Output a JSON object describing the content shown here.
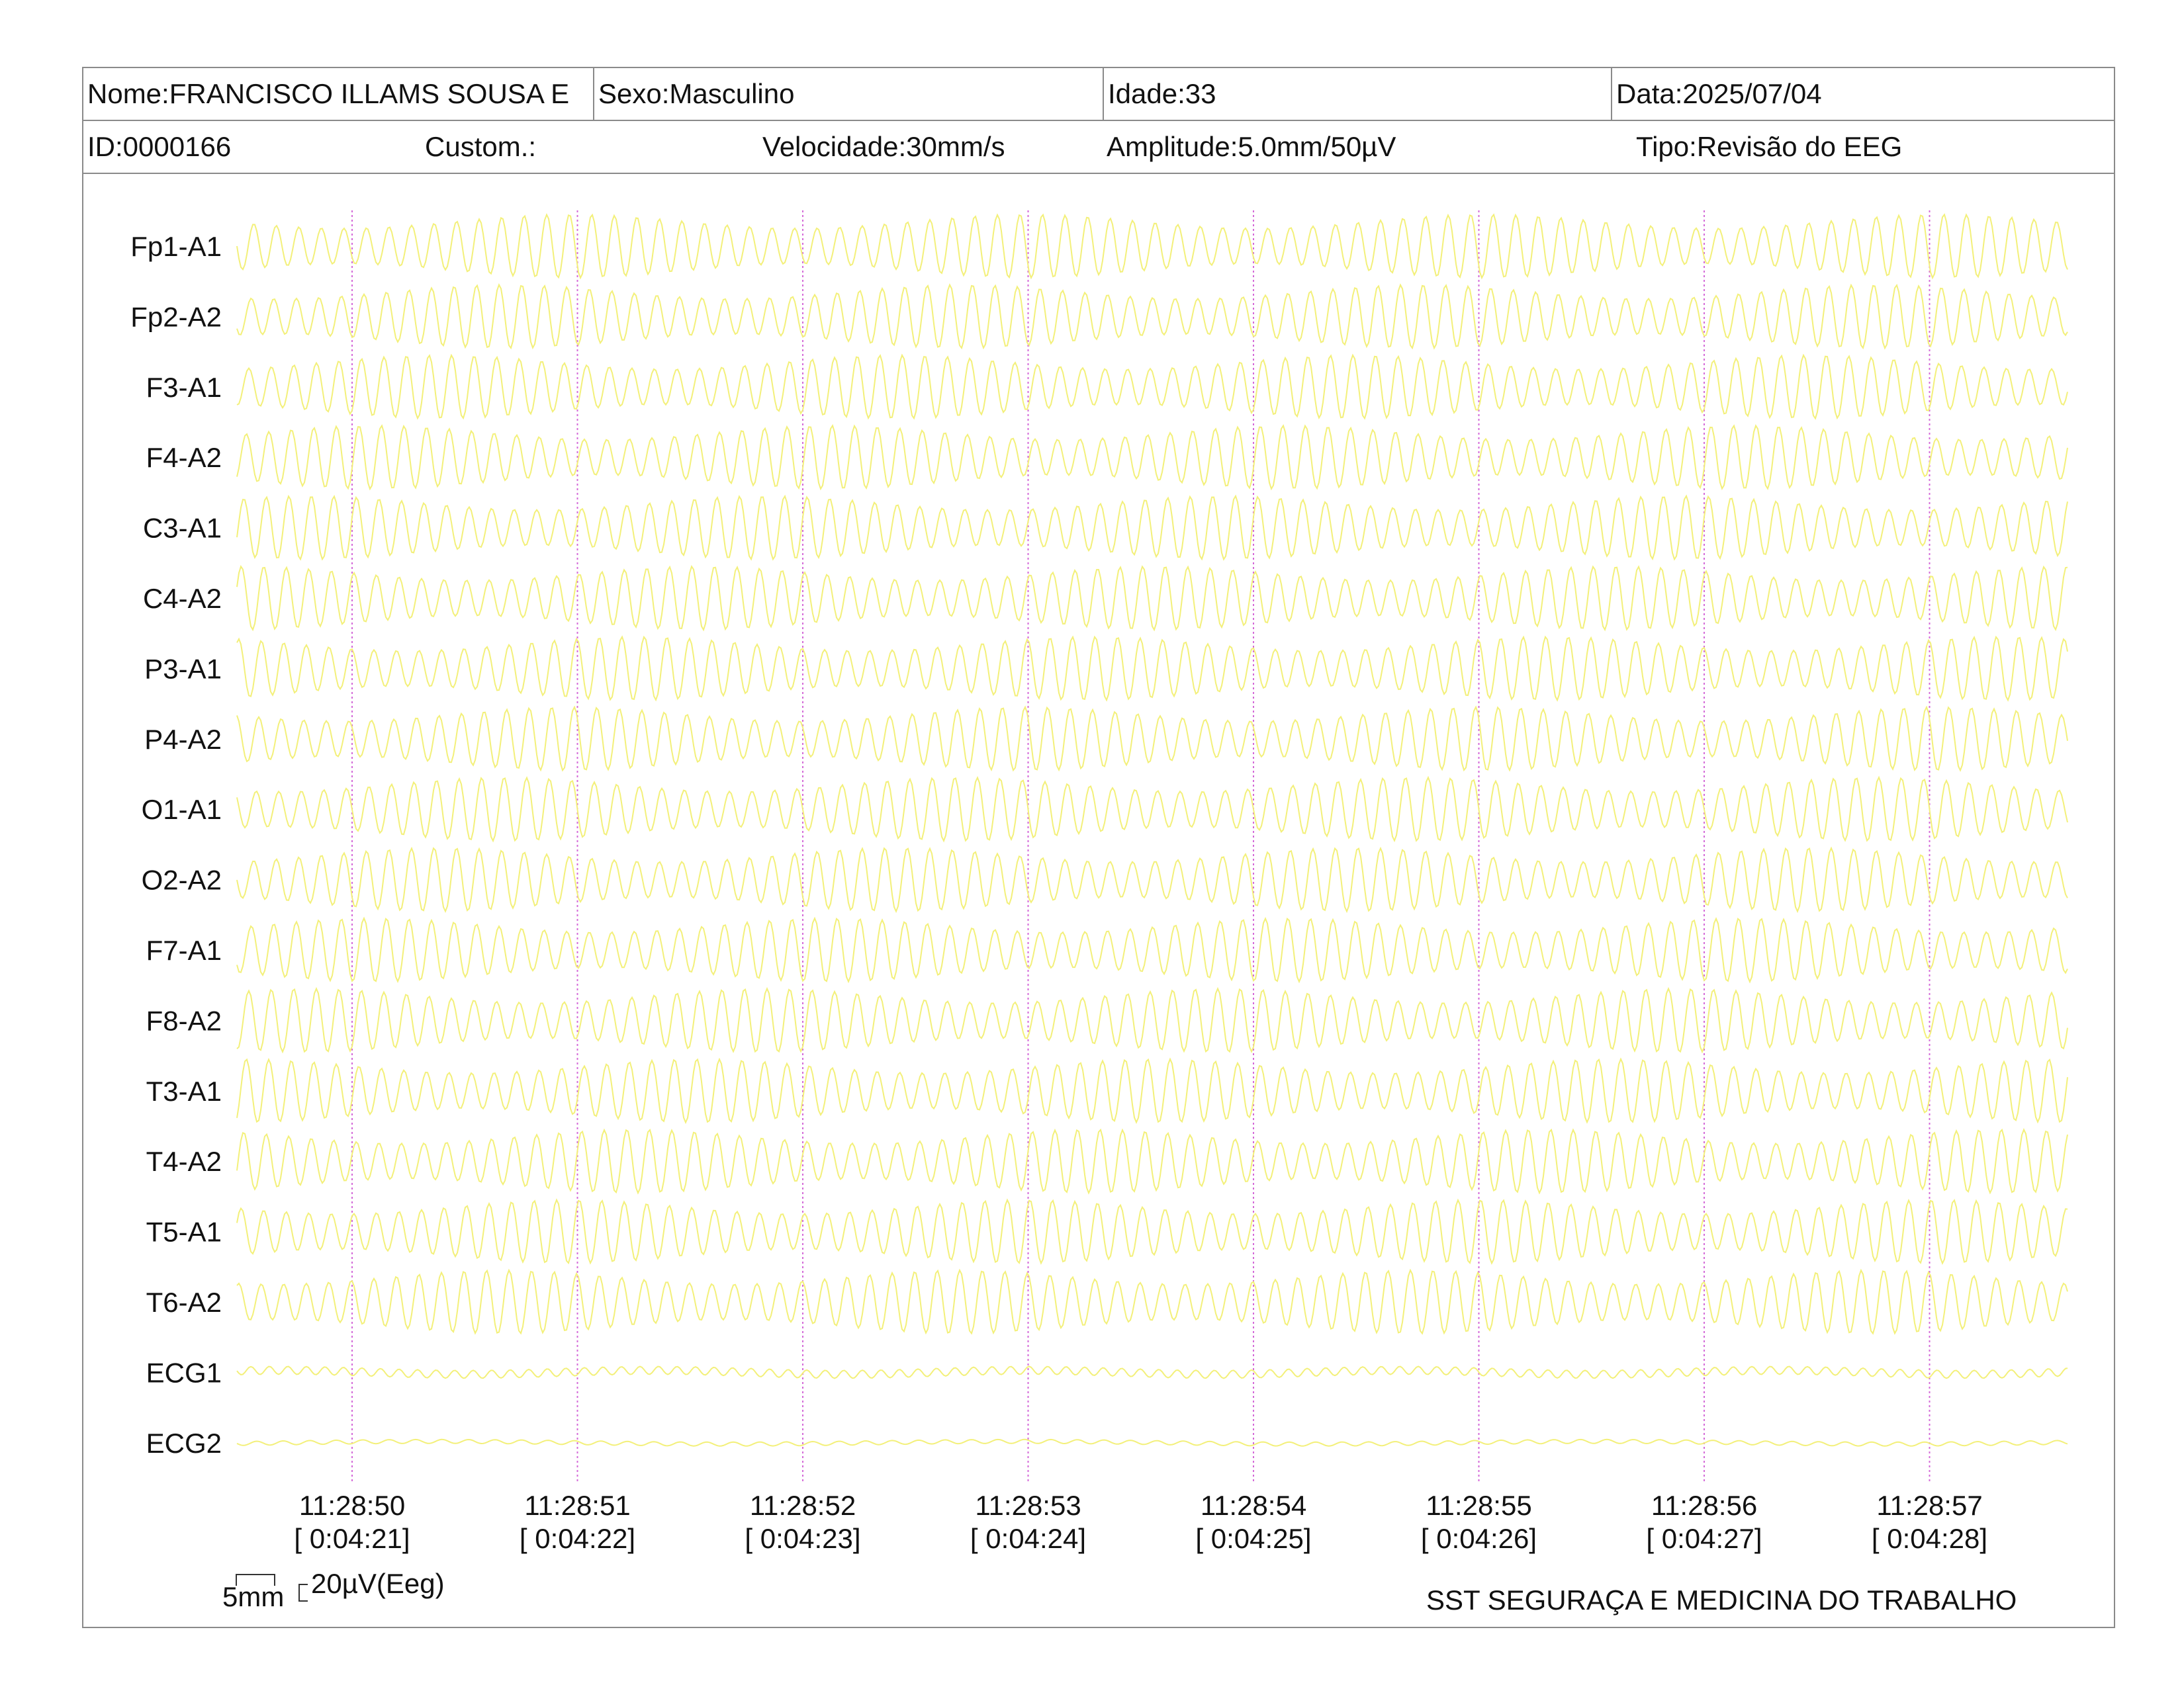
{
  "header": {
    "nome": "Nome:FRANCISCO ILLAMS SOUSA E",
    "sexo": "Sexo:Masculino",
    "idade": "Idade:33",
    "data": "Data:2025/07/04",
    "id": "ID:0000166",
    "custom": "Custom.:",
    "velocidade": "Velocidade:30mm/s",
    "amplitude": "Amplitude:5.0mm/50µV",
    "tipo": "Tipo:Revisão do EEG"
  },
  "chart_data": {
    "type": "line",
    "title": "",
    "xlabel": "",
    "ylabel": "",
    "channels": [
      "Fp1-A1",
      "Fp2-A2",
      "F3-A1",
      "F4-A2",
      "C3-A1",
      "C4-A2",
      "P3-A1",
      "P4-A2",
      "O1-A1",
      "O2-A2",
      "F7-A1",
      "F8-A2",
      "T3-A1",
      "T4-A2",
      "T5-A1",
      "T6-A2",
      "ECG1",
      "ECG2"
    ],
    "time_labels": [
      {
        "clock": "11:28:50",
        "elapsed": "[ 0:04:21]"
      },
      {
        "clock": "11:28:51",
        "elapsed": "[ 0:04:22]"
      },
      {
        "clock": "11:28:52",
        "elapsed": "[ 0:04:23]"
      },
      {
        "clock": "11:28:53",
        "elapsed": "[ 0:04:24]"
      },
      {
        "clock": "11:28:54",
        "elapsed": "[ 0:04:25]"
      },
      {
        "clock": "11:28:55",
        "elapsed": "[ 0:04:26]"
      },
      {
        "clock": "11:28:56",
        "elapsed": "[ 0:04:27]"
      },
      {
        "clock": "11:28:57",
        "elapsed": "[ 0:04:28]"
      }
    ],
    "trace_color": "#f3f07a",
    "marker_color": "#d46ad8",
    "signal_frequency_hz": 10,
    "speed": "30mm/s",
    "amplitude": "5.0mm/50µV",
    "grid": false
  },
  "footer": {
    "scale_time": "5mm",
    "scale_amp": "20µV(Eeg)",
    "company": "SST SEGURAÇA E MEDICINA DO TRABALHO"
  }
}
